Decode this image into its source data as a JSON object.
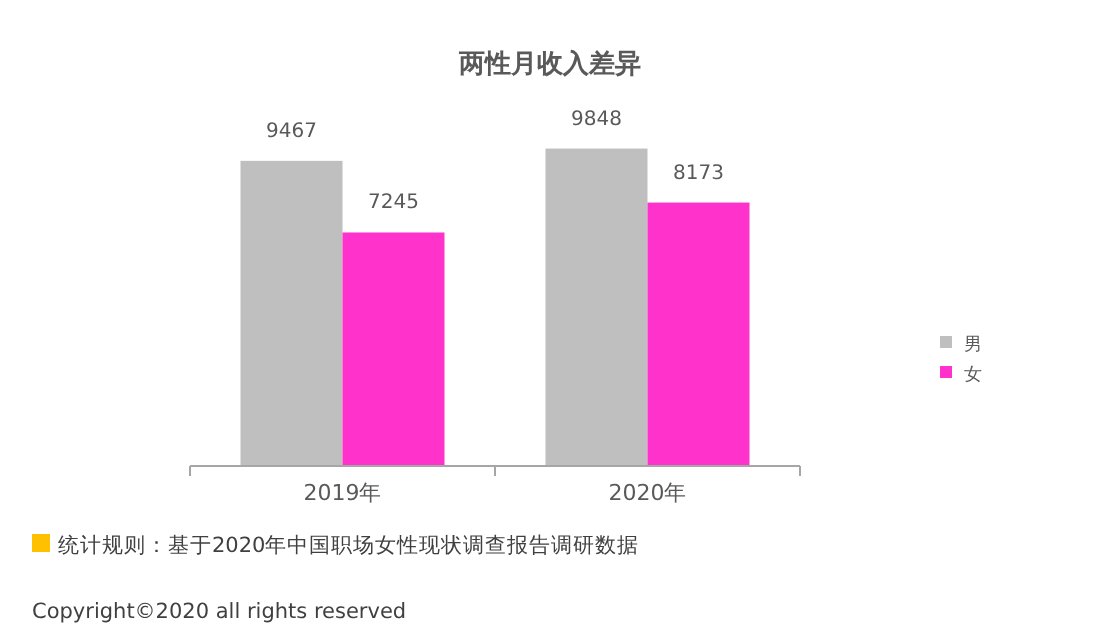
{
  "chart_data": {
    "type": "bar",
    "title": "两性月收入差异",
    "categories": [
      "2019年",
      "2020年"
    ],
    "series": [
      {
        "name": "男",
        "color": "#bfbfbf",
        "values": [
          9467,
          9848
        ]
      },
      {
        "name": "女",
        "color": "#ff33cc",
        "values": [
          7245,
          8173
        ]
      }
    ],
    "data_labels": true,
    "legend": "right",
    "annotations": [
      "统计规则：基于2020年中国职场女性现状调查报告调研数据",
      "Copyright©2020 all rights reserved"
    ]
  }
}
